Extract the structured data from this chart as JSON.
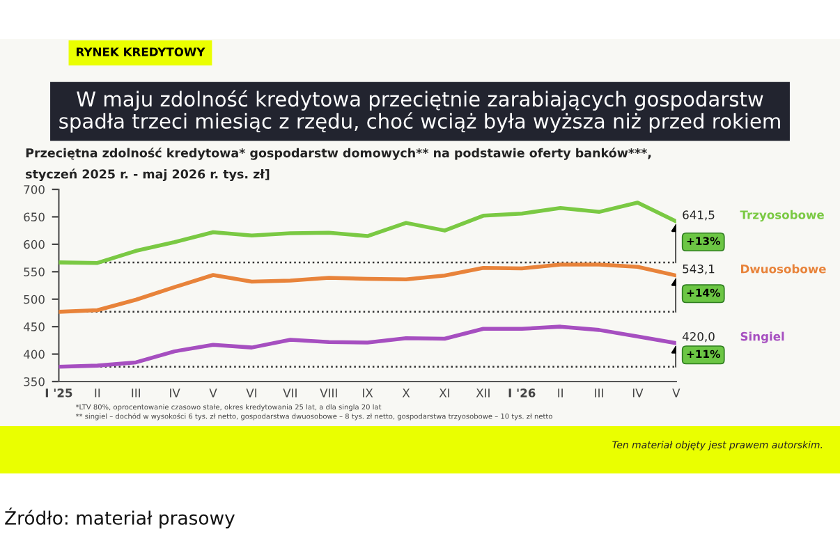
{
  "chart_data": {
    "type": "line",
    "title": "W maju zdolność kredytowa przeciętnie zarabiających gospodarstw\nspadła trzeci miesiąc z rzędu, choć wciąż była wyższa niż przed rokiem",
    "subtitle": "Przeciętna zdolność kredytowa* gospodarstw domowych** na podstawie oferty banków***,\nstyczeń 2025 r. - maj 2026 r. tys. zł]",
    "categories": [
      "I '25",
      "II",
      "III",
      "IV",
      "V",
      "VI",
      "VII",
      "VIII",
      "IX",
      "X",
      "XI",
      "XII",
      "I '26",
      "II",
      "III",
      "IV",
      "V"
    ],
    "series": [
      {
        "name": "Trzyosobowe",
        "color": "#7ac943",
        "values": [
          567,
          566,
          588,
          604,
          622,
          616,
          620,
          621,
          615,
          639,
          625,
          652,
          656,
          666,
          659,
          676,
          641.5
        ],
        "value_labels": [
          null,
          null,
          null,
          null,
          null,
          null,
          null,
          null,
          null,
          null,
          null,
          null,
          null,
          null,
          null,
          null,
          "641,5"
        ]
      },
      {
        "name": "Dwuosobowe",
        "color": "#e8833a",
        "values": [
          477,
          480,
          499,
          522,
          544,
          532,
          534,
          539,
          537,
          536,
          543,
          557,
          556,
          563,
          563,
          559,
          543.1
        ],
        "value_labels": [
          null,
          null,
          null,
          null,
          null,
          null,
          null,
          null,
          null,
          null,
          null,
          null,
          null,
          null,
          null,
          null,
          "543,1"
        ]
      },
      {
        "name": "Singiel",
        "color": "#a64fc0",
        "values": [
          377,
          379,
          385,
          405,
          417,
          412,
          426,
          422,
          421,
          429,
          428,
          446,
          446,
          450,
          444,
          432,
          420.0
        ],
        "value_labels": [
          null,
          null,
          null,
          null,
          null,
          null,
          null,
          null,
          null,
          null,
          null,
          null,
          null,
          null,
          null,
          null,
          "420,0"
        ]
      }
    ],
    "ylim": [
      350,
      700
    ],
    "yticks": [
      350,
      400,
      450,
      500,
      550,
      600,
      650,
      700
    ],
    "ref_lines": [
      {
        "axis": "y",
        "value": 567,
        "color": "#333333",
        "line_style": "dotted"
      },
      {
        "axis": "y",
        "value": 477,
        "color": "#333333",
        "line_style": "dotted"
      },
      {
        "axis": "y",
        "value": 377,
        "color": "#333333",
        "line_style": "dotted"
      }
    ],
    "annotations": [
      "RYNEK KREDYTOWY",
      "*LTV 80%, oprocentowanie czasowo stałe, okres kredytowania 25 lat, a dla singla 20 lat\n** singiel – dochód w wysokości 6 tys. zł netto, gospodarstwa dwuosobowe – 8 tys. zł netto, gospodarstwa trzyosobowe – 10 tys. zł netto",
      "Ten materiał objęty jest prawem autorskim.",
      "Źródło: materiał prasowy",
      "+13%",
      "+14%",
      "+11%"
    ],
    "grid": false,
    "legend": "right",
    "marker": "none",
    "line_style": "solid"
  }
}
